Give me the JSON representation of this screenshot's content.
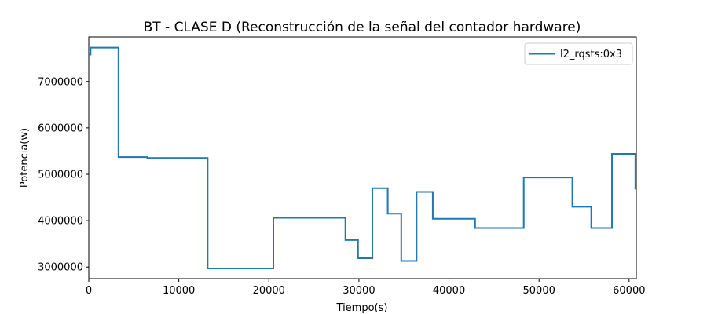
{
  "chart_data": {
    "type": "line",
    "step": "post",
    "title": "BT - CLASE D (Reconstrucción de la señal del contador hardware)",
    "xlabel": "Tiempo(s)",
    "ylabel": "Potencia(w)",
    "xlim": [
      0,
      60800
    ],
    "ylim": [
      2750000,
      7960000
    ],
    "xticks": [
      0,
      10000,
      20000,
      30000,
      40000,
      50000,
      60000
    ],
    "xtick_labels": [
      "0",
      "10000",
      "20000",
      "30000",
      "40000",
      "50000",
      "60000"
    ],
    "yticks": [
      3000000,
      4000000,
      5000000,
      6000000,
      7000000
    ],
    "ytick_labels": [
      "3000000",
      "4000000",
      "5000000",
      "6000000",
      "7000000"
    ],
    "grid": false,
    "legend_position": "top-right",
    "series": [
      {
        "name": "l2_rqsts:0x3",
        "color": "#1f77b4",
        "x": [
          0,
          200,
          3300,
          6500,
          13200,
          20500,
          28500,
          29900,
          31500,
          33200,
          34700,
          36400,
          38200,
          42900,
          48300,
          53700,
          55800,
          58100,
          60700,
          60800
        ],
        "y": [
          7580000,
          7730000,
          5370000,
          5350000,
          2970000,
          4060000,
          3580000,
          3190000,
          4700000,
          4150000,
          3130000,
          4620000,
          4040000,
          3840000,
          4930000,
          4300000,
          3840000,
          5440000,
          4690000,
          4690000
        ]
      }
    ]
  }
}
